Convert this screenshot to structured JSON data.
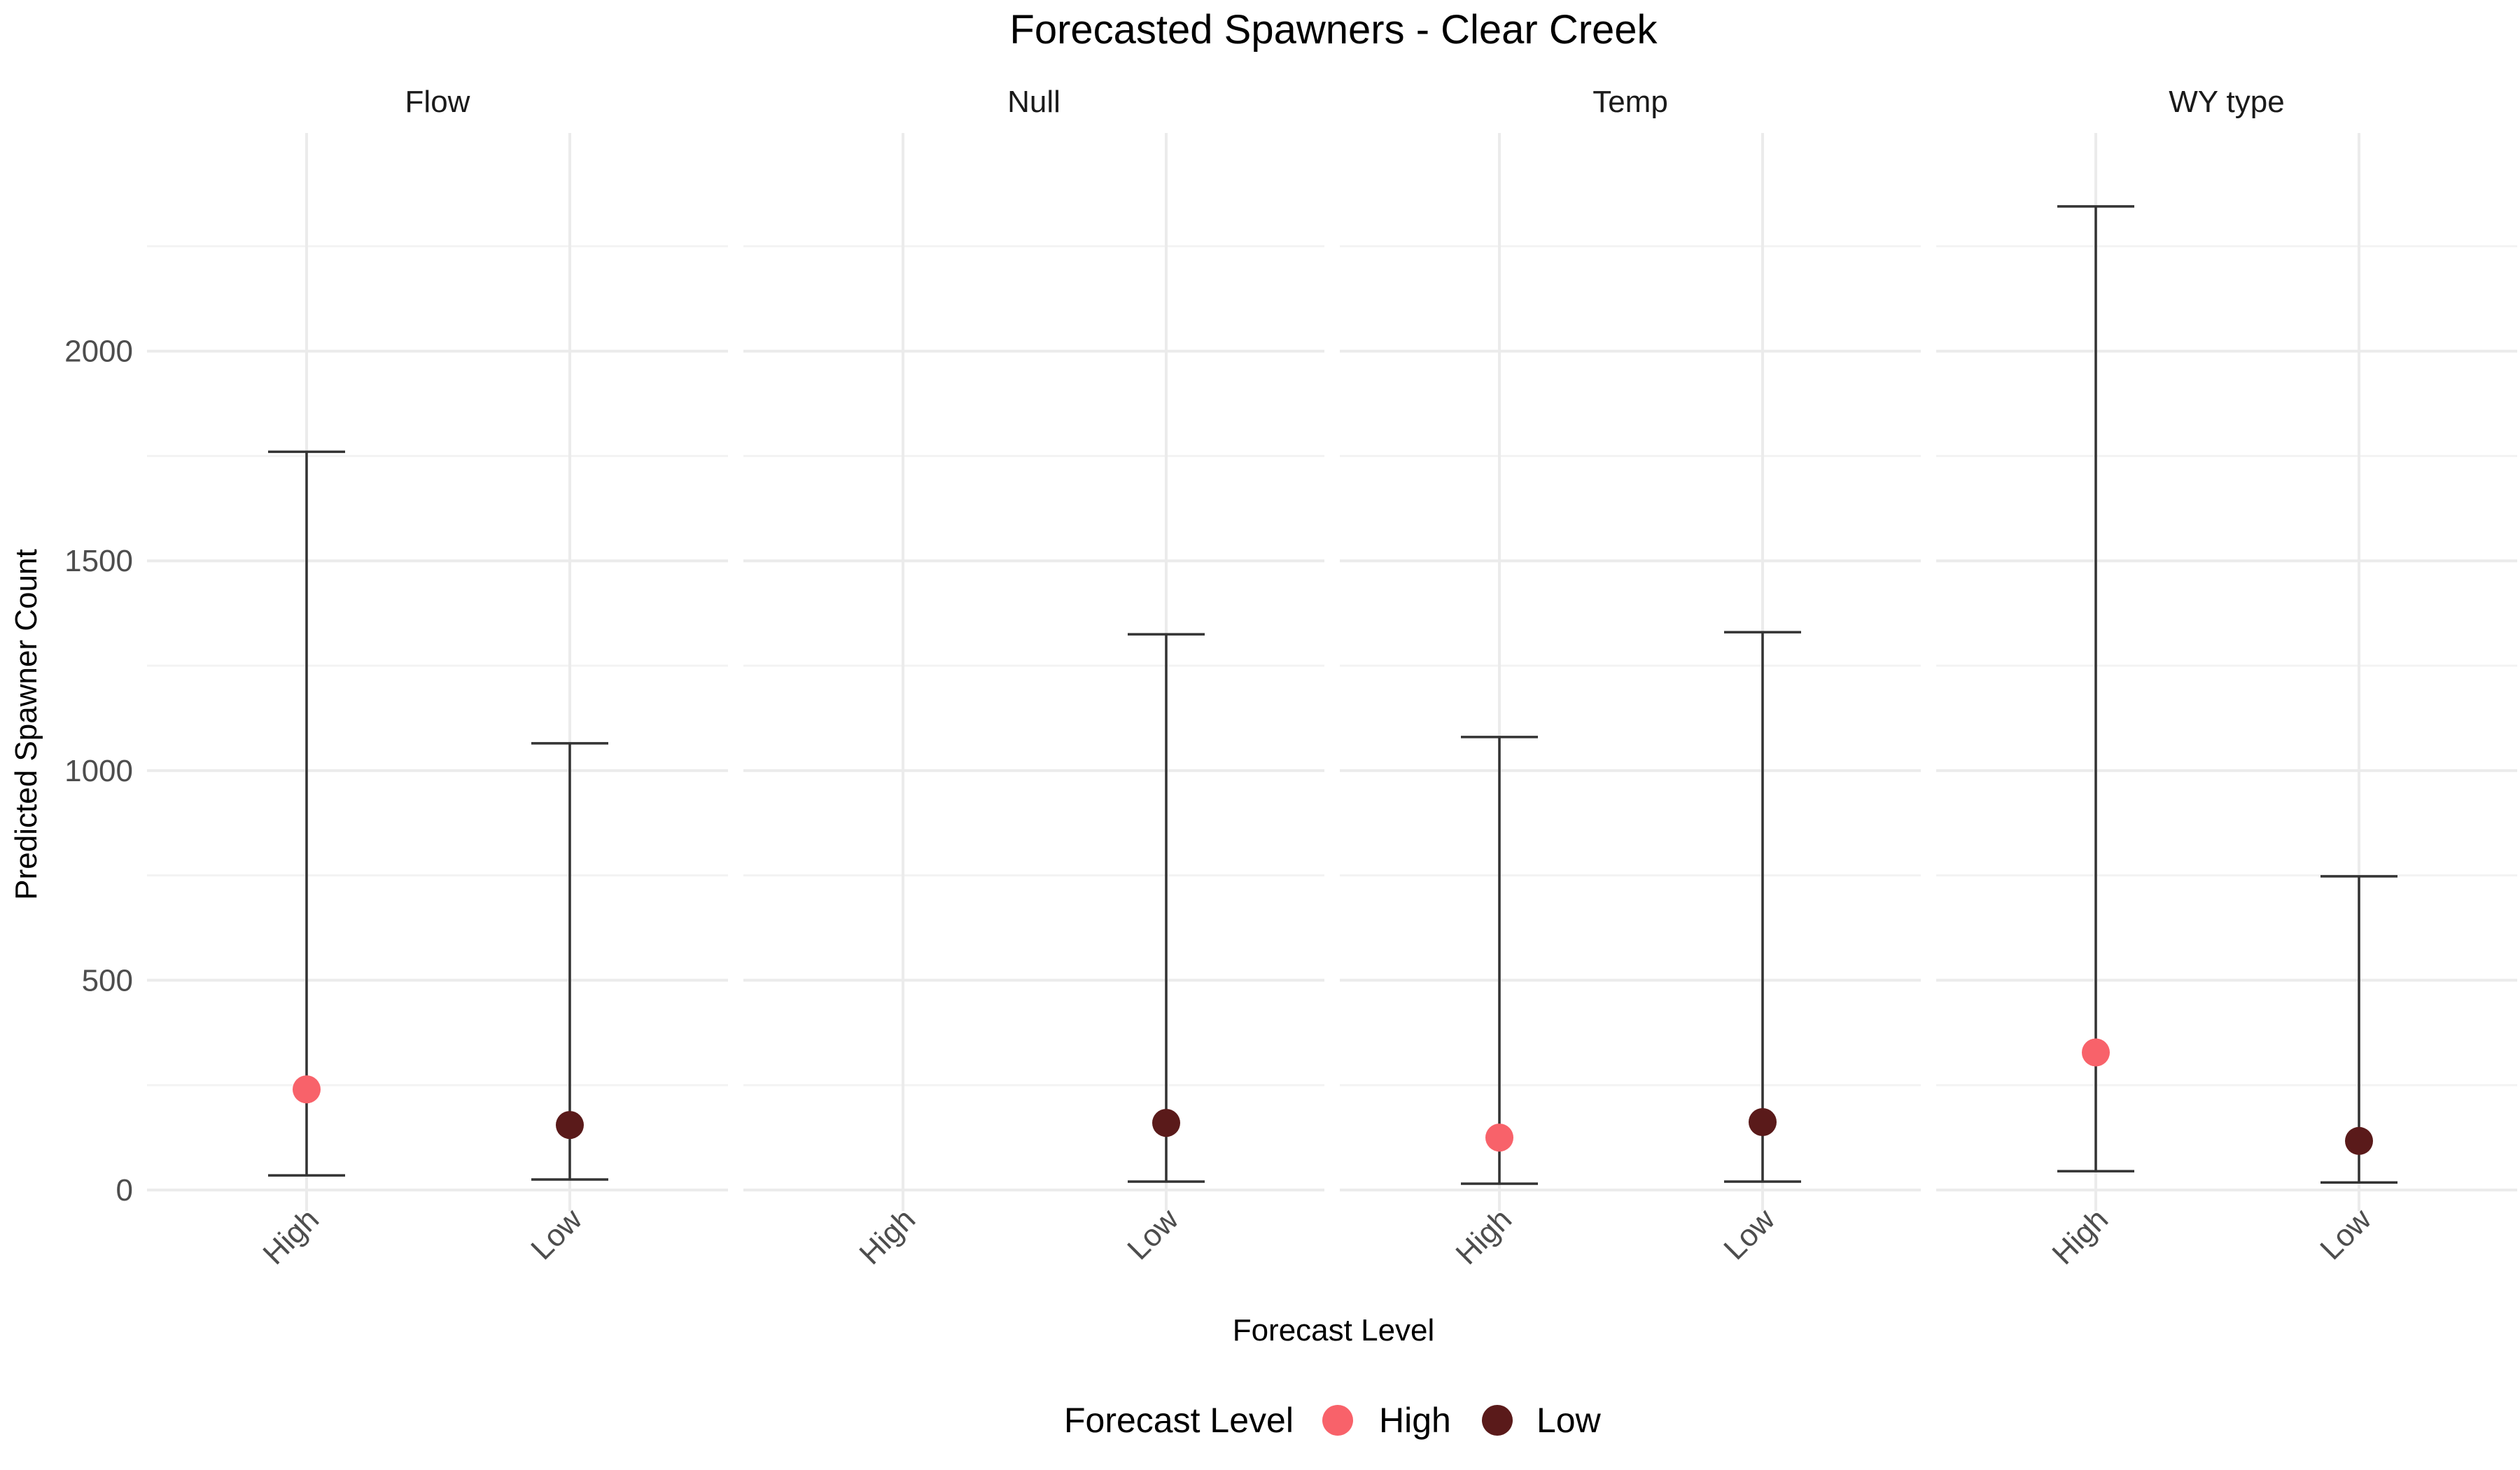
{
  "chart_data": {
    "type": "scatter",
    "subtype": "faceted point with error bars",
    "title": "Forecasted Spawners - Clear Creek",
    "xlabel": "Forecast Level",
    "ylabel": "Predicted Spawner Count",
    "ylim": [
      -50,
      2520
    ],
    "yticks": [
      0,
      500,
      1000,
      1500,
      2000
    ],
    "categories": [
      "High",
      "Low"
    ],
    "grid": true,
    "legend": {
      "title": "Forecast Level",
      "position": "bottom",
      "items": [
        {
          "label": "High",
          "color": "#F8626A"
        },
        {
          "label": "Low",
          "color": "#5A1A1A"
        }
      ]
    },
    "colors": {
      "High": "#F8626A",
      "Low": "#5A1A1A",
      "errorbar": "#333333",
      "grid_major": "#ebebeb",
      "grid_minor": "#f3f3f3"
    },
    "facets": [
      {
        "name": "Flow",
        "points": [
          {
            "level": "High",
            "value": 240,
            "lower": 35,
            "upper": 1760
          },
          {
            "level": "Low",
            "value": 155,
            "lower": 25,
            "upper": 1065
          }
        ]
      },
      {
        "name": "Null",
        "points": [
          {
            "level": "Low",
            "value": 160,
            "lower": 20,
            "upper": 1325
          }
        ]
      },
      {
        "name": "Temp",
        "points": [
          {
            "level": "High",
            "value": 125,
            "lower": 15,
            "upper": 1080
          },
          {
            "level": "Low",
            "value": 162,
            "lower": 20,
            "upper": 1330
          }
        ]
      },
      {
        "name": "WY type",
        "points": [
          {
            "level": "High",
            "value": 328,
            "lower": 45,
            "upper": 2345
          },
          {
            "level": "Low",
            "value": 117,
            "lower": 18,
            "upper": 748
          }
        ]
      }
    ]
  }
}
